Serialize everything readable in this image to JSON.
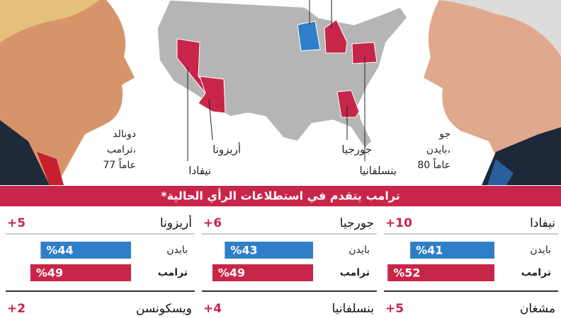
{
  "leaders": [
    {
      "lines": [
        "دونالد",
        "ترامب،",
        "77 عاماً"
      ]
    },
    {
      "lines": [
        "جو",
        "بايدن،",
        "80 عاماً"
      ]
    }
  ],
  "map_labels": [
    "أريزونا",
    "نيفادا",
    "جورجيا",
    "بنسلفانيا"
  ],
  "banner": "ترامب يتقدم في استطلاعات الرأي الحالية*",
  "candidate_names": [
    "بايدن",
    "ترامب"
  ],
  "colors": {
    "biden": "#2f7fc8",
    "trump": "#c8254a"
  },
  "states": [
    {
      "name": "نيفادا",
      "lead": "+10",
      "biden": 41,
      "biden_label": "%41",
      "trump": 52,
      "trump_label": "%52"
    },
    {
      "name": "جورجيا",
      "lead": "+6",
      "biden": 43,
      "biden_label": "%43",
      "trump": 49,
      "trump_label": "%49"
    },
    {
      "name": "أريزونا",
      "lead": "+5",
      "biden": 44,
      "biden_label": "%44",
      "trump": 49,
      "trump_label": "%49"
    }
  ],
  "more_states": [
    {
      "name": "مشغان",
      "lead": "+5"
    },
    {
      "name": "بنسلفانيا",
      "lead": "+4"
    },
    {
      "name": "ويسكونسن",
      "lead": "+2"
    }
  ]
}
